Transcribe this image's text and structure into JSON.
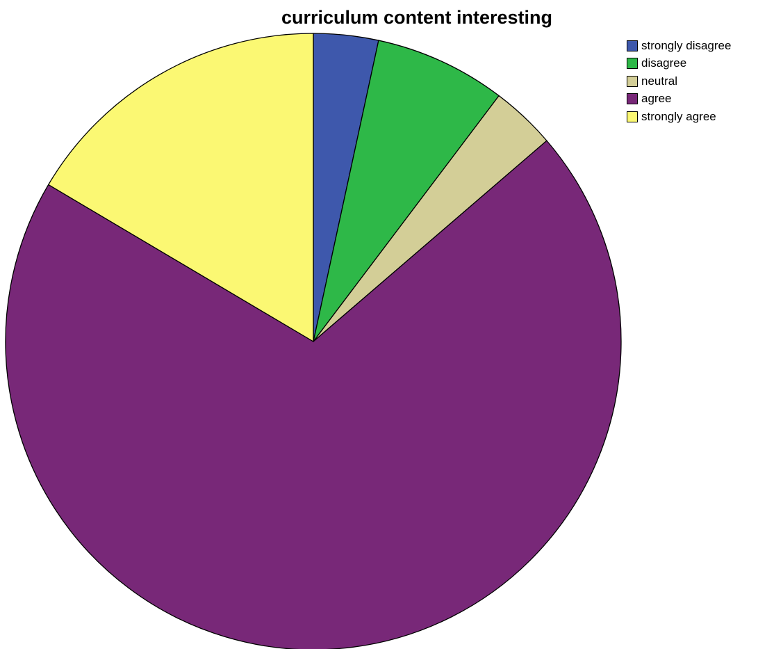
{
  "chart_data": {
    "type": "pie",
    "title": "curriculum content interesting",
    "slices": [
      {
        "label": "strongly disagree",
        "value": 3.4,
        "color": "#3e58ac"
      },
      {
        "label": "disagree",
        "value": 6.9,
        "color": "#2eb848"
      },
      {
        "label": "neutral",
        "value": 3.4,
        "color": "#d3ce97"
      },
      {
        "label": "agree",
        "value": 69.8,
        "color": "#782878"
      },
      {
        "label": "strongly agree",
        "value": 16.5,
        "color": "#fbf873"
      }
    ],
    "legend_position": "top-right",
    "start_angle": "12 o'clock",
    "direction": "clockwise"
  }
}
